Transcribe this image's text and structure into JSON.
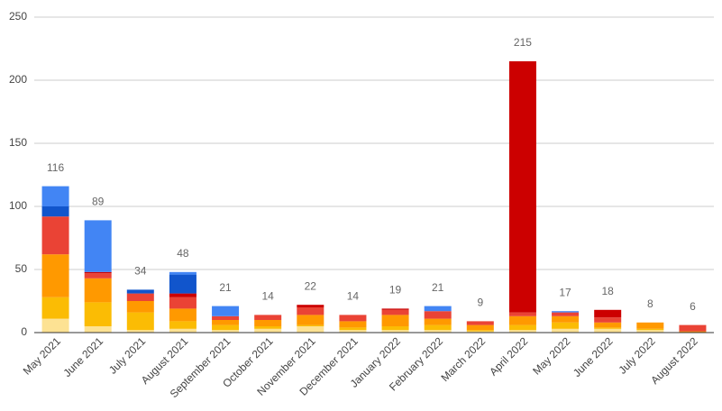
{
  "chart_data": {
    "type": "stacked-bar",
    "categories": [
      "May 2021",
      "June 2021",
      "July 2021",
      "August 2021",
      "September 2021",
      "October 2021",
      "November 2021",
      "December 2021",
      "January 2022",
      "February 2022",
      "March 2022",
      "April 2022",
      "May 2022",
      "June 2022",
      "July 2022",
      "August 2022"
    ],
    "series": [
      {
        "color": "#fde293",
        "values": [
          11,
          5,
          2,
          3,
          2,
          3,
          5,
          2,
          2,
          2,
          1,
          2,
          3,
          3,
          2,
          0
        ]
      },
      {
        "color": "#fbbc04",
        "values": [
          17,
          19,
          14,
          6,
          4,
          2,
          1,
          2,
          3,
          4,
          1,
          4,
          5,
          1,
          1,
          0
        ]
      },
      {
        "color": "#ff9900",
        "values": [
          34,
          19,
          9,
          10,
          4,
          5,
          8,
          5,
          9,
          5,
          4,
          7,
          5,
          4,
          5,
          1
        ]
      },
      {
        "color": "#ea4335",
        "values": [
          30,
          4,
          6,
          9,
          3,
          4,
          6,
          5,
          4,
          6,
          3,
          3,
          3,
          4,
          0,
          5
        ]
      },
      {
        "color": "#cc0000",
        "values": [
          0,
          1,
          0,
          3,
          0,
          0,
          2,
          0,
          1,
          0,
          0,
          199,
          0,
          6,
          0,
          0
        ]
      },
      {
        "color": "#1155cc",
        "values": [
          8,
          0,
          3,
          15,
          0,
          0,
          0,
          0,
          0,
          0,
          0,
          0,
          0,
          0,
          0,
          0
        ]
      },
      {
        "color": "#4285f4",
        "values": [
          16,
          41,
          0,
          2,
          8,
          0,
          0,
          0,
          0,
          4,
          0,
          0,
          1,
          0,
          0,
          0
        ]
      }
    ],
    "totals": [
      116,
      89,
      34,
      48,
      21,
      14,
      22,
      14,
      19,
      21,
      9,
      215,
      17,
      18,
      8,
      6
    ],
    "ylim": [
      0,
      250
    ],
    "yticks": [
      0,
      50,
      100,
      150,
      200,
      250
    ],
    "grid": true
  }
}
